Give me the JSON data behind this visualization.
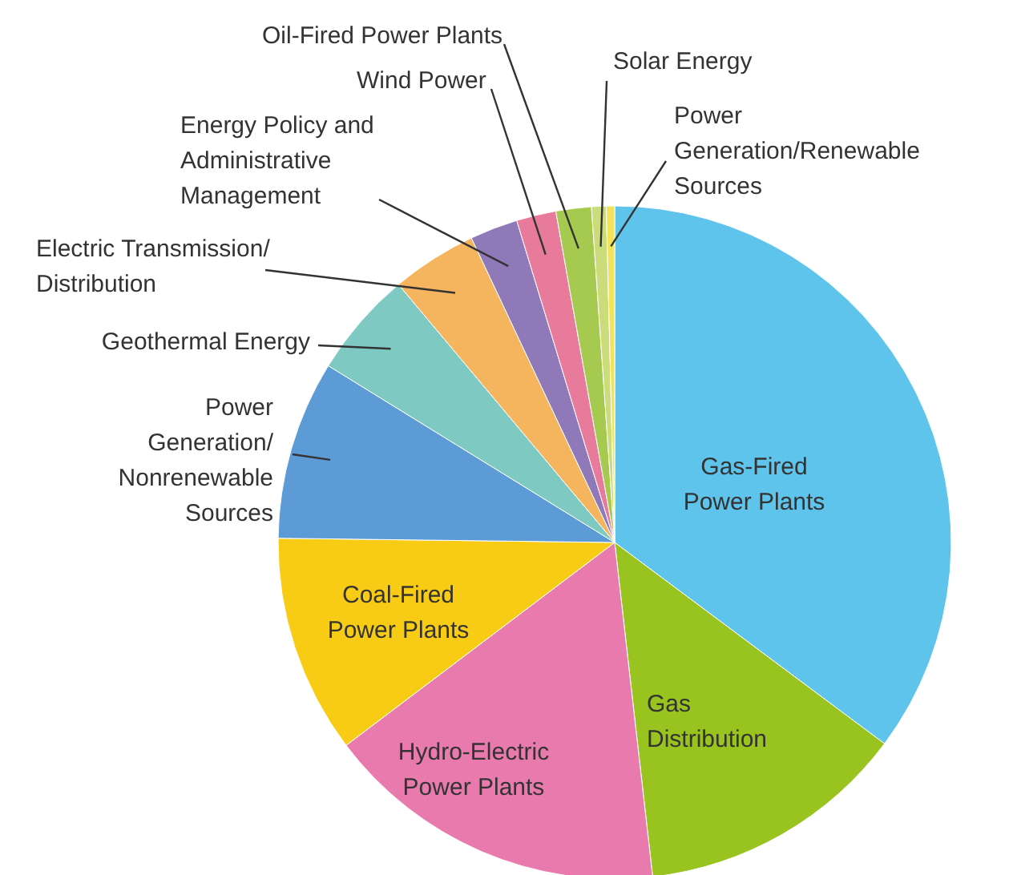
{
  "chart_data": {
    "type": "pie",
    "categories": [
      "Gas-Fired\nPower Plants",
      "Gas\nDistribution",
      "Hydro-Electric\nPower Plants",
      "Coal-Fired\nPower Plants",
      "Power\nGeneration/\nNonrenewable\nSources",
      "Geothermal Energy",
      "Electric Transmission/\nDistribution",
      "Energy Policy and\nAdministrative\nManagement",
      "Wind Power",
      "Oil-Fired Power Plants",
      "Solar Energy",
      "Power\nGeneration/Renewable\nSources"
    ],
    "values": [
      35.2,
      13,
      16.5,
      10.5,
      8.6,
      5.1,
      4.1,
      2.3,
      1.9,
      1.7,
      0.7,
      0.4
    ],
    "colors": [
      "#5fc4ec",
      "#99c31f",
      "#e87aae",
      "#f8cc14",
      "#5c9bd6",
      "#7ecac2",
      "#f5b55f",
      "#8f79b9",
      "#e87a9c",
      "#a6ca4f",
      "#cbdc7a",
      "#f2e35a"
    ]
  }
}
